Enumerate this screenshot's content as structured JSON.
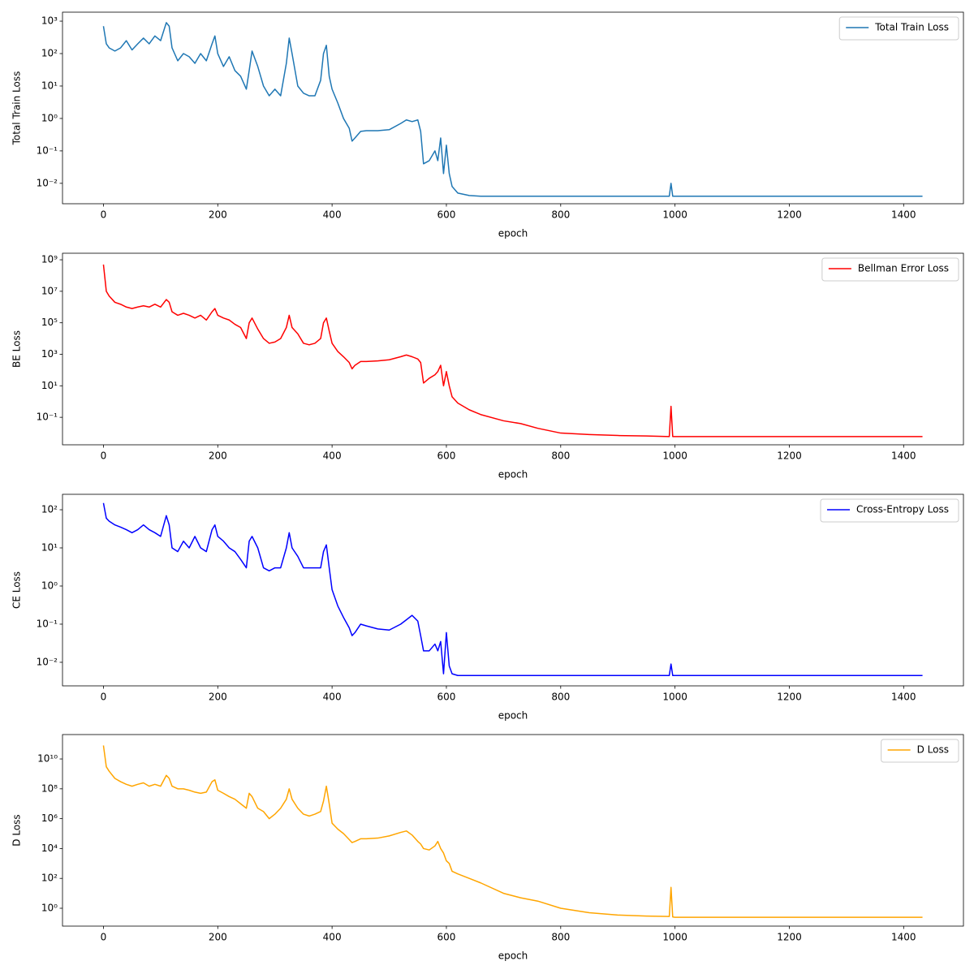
{
  "chart_data": [
    {
      "type": "line",
      "xlabel": "epoch",
      "ylabel": "Total Train Loss",
      "yscale": "log",
      "legend": "upper right",
      "xlim": [
        -71.65,
        1504.65
      ],
      "xticks": [
        0,
        200,
        400,
        600,
        800,
        1000,
        1200,
        1400
      ],
      "ylim": [
        0.00235,
        1890
      ],
      "yticks": [
        {
          "value": 0.01,
          "label": "10⁻²"
        },
        {
          "value": 0.1,
          "label": "10⁻¹"
        },
        {
          "value": 1,
          "label": "10⁰"
        },
        {
          "value": 10,
          "label": "10¹"
        },
        {
          "value": 100,
          "label": "10²"
        },
        {
          "value": 1000,
          "label": "10³"
        }
      ],
      "x": [
        0,
        5,
        10,
        20,
        30,
        40,
        50,
        60,
        70,
        80,
        90,
        100,
        110,
        115,
        120,
        130,
        140,
        150,
        160,
        170,
        180,
        190,
        195,
        200,
        210,
        220,
        230,
        240,
        250,
        255,
        260,
        270,
        280,
        290,
        300,
        310,
        320,
        325,
        330,
        340,
        350,
        360,
        370,
        380,
        385,
        390,
        395,
        400,
        410,
        420,
        430,
        435,
        440,
        450,
        460,
        480,
        500,
        520,
        530,
        540,
        550,
        555,
        560,
        570,
        580,
        585,
        590,
        595,
        600,
        605,
        610,
        620,
        640,
        660,
        700,
        730,
        760,
        800,
        850,
        900,
        950,
        990,
        993,
        996,
        1000,
        1100,
        1200,
        1300,
        1433
      ],
      "series": [
        {
          "name": "Total Train Loss",
          "color": "#1f77b4",
          "values": [
            700,
            200,
            150,
            120,
            150,
            250,
            130,
            200,
            300,
            200,
            350,
            250,
            900,
            700,
            150,
            60,
            100,
            80,
            50,
            100,
            60,
            200,
            350,
            100,
            40,
            80,
            30,
            20,
            8,
            30,
            120,
            40,
            10,
            5,
            8,
            5,
            50,
            300,
            100,
            10,
            6,
            5,
            5,
            15,
            100,
            180,
            20,
            8,
            3,
            1,
            0.5,
            0.2,
            0.25,
            0.4,
            0.42,
            0.42,
            0.45,
            0.7,
            0.9,
            0.8,
            0.9,
            0.4,
            0.04,
            0.05,
            0.1,
            0.05,
            0.25,
            0.02,
            0.15,
            0.02,
            0.008,
            0.005,
            0.0042,
            0.004,
            0.004,
            0.004,
            0.004,
            0.004,
            0.004,
            0.004,
            0.004,
            0.004,
            0.01,
            0.004,
            0.004,
            0.004,
            0.004,
            0.004,
            0.004
          ]
        }
      ]
    },
    {
      "type": "line",
      "xlabel": "epoch",
      "ylabel": "BE Loss",
      "yscale": "log",
      "legend": "upper right",
      "xlim": [
        -71.65,
        1504.65
      ],
      "xticks": [
        0,
        200,
        400,
        600,
        800,
        1000,
        1200,
        1400
      ],
      "ylim": [
        0.0018,
        2600000000.0
      ],
      "yticks": [
        {
          "value": 0.1,
          "label": "10⁻¹"
        },
        {
          "value": 10,
          "label": "10¹"
        },
        {
          "value": 1000,
          "label": "10³"
        },
        {
          "value": 100000.0,
          "label": "10⁵"
        },
        {
          "value": 10000000.0,
          "label": "10⁷"
        },
        {
          "value": 1000000000.0,
          "label": "10⁹"
        }
      ],
      "x": [
        0,
        5,
        10,
        20,
        30,
        40,
        50,
        60,
        70,
        80,
        90,
        100,
        110,
        115,
        120,
        130,
        140,
        150,
        160,
        170,
        180,
        190,
        195,
        200,
        210,
        220,
        230,
        240,
        250,
        255,
        260,
        270,
        280,
        290,
        300,
        310,
        320,
        325,
        330,
        340,
        350,
        360,
        370,
        380,
        385,
        390,
        395,
        400,
        410,
        420,
        430,
        435,
        440,
        450,
        460,
        480,
        500,
        520,
        530,
        540,
        550,
        555,
        560,
        570,
        580,
        585,
        590,
        595,
        600,
        605,
        610,
        620,
        640,
        660,
        700,
        730,
        760,
        800,
        850,
        900,
        950,
        990,
        993,
        996,
        1000,
        1100,
        1200,
        1300,
        1433
      ],
      "series": [
        {
          "name": "Bellman Error Loss",
          "color": "#ff0000",
          "values": [
            500000000.0,
            10000000.0,
            5000000.0,
            2000000.0,
            1500000.0,
            1000000.0,
            800000.0,
            1000000.0,
            1200000.0,
            1000000.0,
            1500000.0,
            1000000.0,
            3000000.0,
            2000000.0,
            500000.0,
            300000.0,
            400000.0,
            300000.0,
            200000.0,
            300000.0,
            150000.0,
            500000.0,
            800000.0,
            300000.0,
            200000.0,
            150000.0,
            80000.0,
            50000.0,
            10000.0,
            100000.0,
            200000.0,
            40000.0,
            10000.0,
            5000.0,
            6000.0,
            10000.0,
            50000.0,
            300000.0,
            50000.0,
            20000.0,
            5000.0,
            4000.0,
            5000.0,
            10000.0,
            100000.0,
            200000.0,
            30000.0,
            5000.0,
            1500,
            700,
            300,
            120,
            200,
            350,
            350,
            380,
            450,
            700,
            900,
            700,
            500,
            300,
            15,
            30,
            50,
            80,
            200,
            10,
            80,
            10,
            2,
            0.8,
            0.3,
            0.15,
            0.06,
            0.04,
            0.02,
            0.01,
            0.008,
            0.007,
            0.0065,
            0.006,
            0.5,
            0.006,
            0.006,
            0.006,
            0.006,
            0.006,
            0.006
          ]
        }
      ]
    },
    {
      "type": "line",
      "xlabel": "epoch",
      "ylabel": "CE Loss",
      "yscale": "log",
      "legend": "upper right",
      "xlim": [
        -71.65,
        1504.65
      ],
      "xticks": [
        0,
        200,
        400,
        600,
        800,
        1000,
        1200,
        1400
      ],
      "ylim": [
        0.00241,
        254
      ],
      "yticks": [
        {
          "value": 0.01,
          "label": "10⁻²"
        },
        {
          "value": 0.1,
          "label": "10⁻¹"
        },
        {
          "value": 1,
          "label": "10⁰"
        },
        {
          "value": 10,
          "label": "10¹"
        },
        {
          "value": 100,
          "label": "10²"
        }
      ],
      "x": [
        0,
        5,
        10,
        20,
        30,
        40,
        50,
        60,
        70,
        80,
        90,
        100,
        110,
        115,
        120,
        130,
        140,
        150,
        160,
        170,
        180,
        190,
        195,
        200,
        210,
        220,
        230,
        240,
        250,
        255,
        260,
        270,
        280,
        290,
        300,
        310,
        320,
        325,
        330,
        340,
        350,
        360,
        370,
        380,
        385,
        390,
        395,
        400,
        410,
        420,
        430,
        435,
        440,
        450,
        460,
        480,
        500,
        520,
        530,
        540,
        550,
        555,
        560,
        570,
        580,
        585,
        590,
        595,
        600,
        605,
        610,
        620,
        640,
        660,
        700,
        730,
        760,
        800,
        850,
        900,
        950,
        990,
        993,
        996,
        1000,
        1100,
        1200,
        1300,
        1433
      ],
      "series": [
        {
          "name": "Cross-Entropy Loss",
          "color": "#0000ff",
          "values": [
            150,
            60,
            50,
            40,
            35,
            30,
            25,
            30,
            40,
            30,
            25,
            20,
            70,
            40,
            10,
            8,
            15,
            10,
            20,
            10,
            8,
            30,
            40,
            20,
            15,
            10,
            8,
            5,
            3,
            15,
            20,
            10,
            3,
            2.5,
            3,
            3,
            10,
            25,
            10,
            6,
            3,
            3,
            3,
            3,
            8,
            12,
            3,
            0.8,
            0.3,
            0.15,
            0.08,
            0.05,
            0.06,
            0.1,
            0.09,
            0.075,
            0.07,
            0.1,
            0.13,
            0.17,
            0.12,
            0.05,
            0.02,
            0.02,
            0.03,
            0.02,
            0.035,
            0.005,
            0.06,
            0.008,
            0.005,
            0.0045,
            0.0045,
            0.0045,
            0.0045,
            0.0045,
            0.0045,
            0.0045,
            0.0045,
            0.0045,
            0.0045,
            0.0045,
            0.009,
            0.0045,
            0.0045,
            0.0045,
            0.0045,
            0.0045,
            0.0045
          ]
        }
      ]
    },
    {
      "type": "line",
      "xlabel": "epoch",
      "ylabel": "D Loss",
      "yscale": "log",
      "legend": "upper right",
      "xlim": [
        -71.65,
        1504.65
      ],
      "xticks": [
        0,
        200,
        400,
        600,
        800,
        1000,
        1200,
        1400
      ],
      "ylim": [
        0.0637,
        430000000000.0
      ],
      "yticks": [
        {
          "value": 1,
          "label": "10⁰"
        },
        {
          "value": 100,
          "label": "10²"
        },
        {
          "value": 10000.0,
          "label": "10⁴"
        },
        {
          "value": 1000000.0,
          "label": "10⁶"
        },
        {
          "value": 100000000.0,
          "label": "10⁸"
        },
        {
          "value": 10000000000.0,
          "label": "10¹⁰"
        }
      ],
      "x": [
        0,
        5,
        10,
        20,
        30,
        40,
        50,
        60,
        70,
        80,
        90,
        100,
        110,
        115,
        120,
        130,
        140,
        150,
        160,
        170,
        180,
        190,
        195,
        200,
        210,
        220,
        230,
        240,
        250,
        255,
        260,
        270,
        280,
        290,
        300,
        310,
        320,
        325,
        330,
        340,
        350,
        360,
        370,
        380,
        385,
        390,
        395,
        400,
        410,
        420,
        430,
        435,
        440,
        450,
        460,
        480,
        500,
        520,
        530,
        540,
        550,
        555,
        560,
        570,
        580,
        585,
        590,
        595,
        600,
        605,
        610,
        620,
        640,
        660,
        700,
        730,
        760,
        800,
        850,
        900,
        950,
        990,
        993,
        996,
        1000,
        1100,
        1200,
        1300,
        1433
      ],
      "series": [
        {
          "name": "D Loss",
          "color": "#ffa500",
          "values": [
            80000000000.0,
            3000000000.0,
            1500000000.0,
            500000000.0,
            300000000.0,
            200000000.0,
            150000000.0,
            200000000.0,
            250000000.0,
            150000000.0,
            200000000.0,
            150000000.0,
            800000000.0,
            500000000.0,
            150000000.0,
            100000000.0,
            100000000.0,
            80000000.0,
            60000000.0,
            50000000.0,
            60000000.0,
            300000000.0,
            400000000.0,
            80000000.0,
            50000000.0,
            30000000.0,
            20000000.0,
            10000000.0,
            5000000.0,
            50000000.0,
            30000000.0,
            5000000.0,
            3000000.0,
            1000000.0,
            2000000.0,
            5000000.0,
            20000000.0,
            100000000.0,
            20000000.0,
            5000000.0,
            2000000.0,
            1500000.0,
            2000000.0,
            3000000.0,
            15000000.0,
            150000000.0,
            10000000.0,
            500000.0,
            200000.0,
            100000.0,
            40000.0,
            25000.0,
            30000.0,
            45000.0,
            45000.0,
            50000.0,
            70000.0,
            120000.0,
            150000.0,
            80000.0,
            30000.0,
            20000.0,
            10000.0,
            8000.0,
            15000.0,
            30000.0,
            10000.0,
            5000.0,
            1500.0,
            1000.0,
            300,
            200,
            100,
            50,
            10,
            5,
            3,
            1,
            0.5,
            0.35,
            0.3,
            0.28,
            25,
            0.26,
            0.25,
            0.25,
            0.25,
            0.25,
            0.25
          ]
        }
      ]
    }
  ]
}
